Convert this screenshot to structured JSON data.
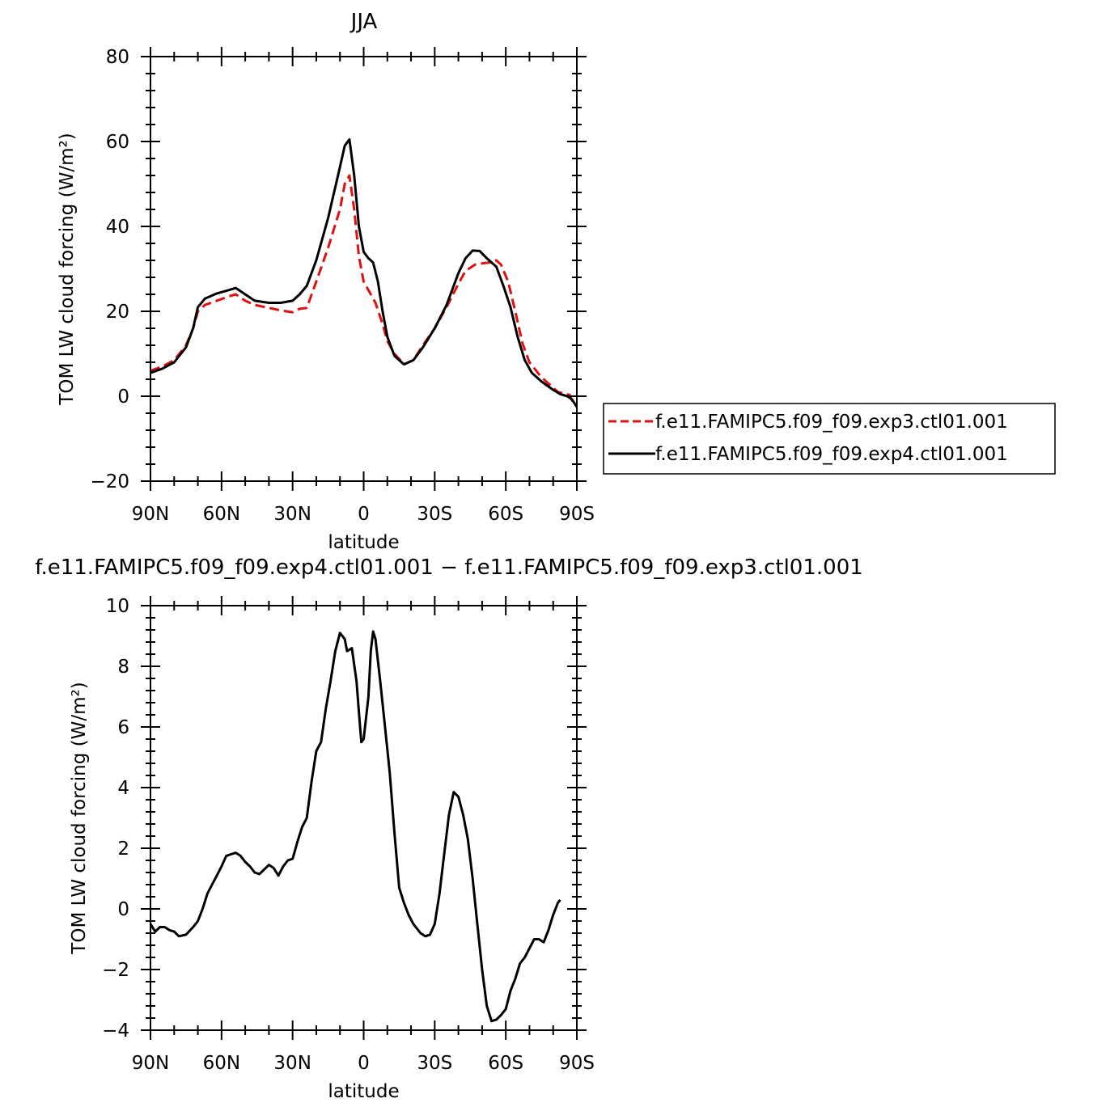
{
  "chart_data": [
    {
      "type": "line",
      "title": "JJA",
      "xlabel": "latitude",
      "ylabel": "TOM LW cloud forcing (W/m²)",
      "xlim": [
        90,
        -90
      ],
      "ylim": [
        -20,
        80
      ],
      "xticks": [
        90,
        60,
        30,
        0,
        -30,
        -60,
        -90
      ],
      "xtick_labels": [
        "90N",
        "60N",
        "30N",
        "0",
        "30S",
        "60S",
        "90S"
      ],
      "yticks": [
        -20,
        0,
        20,
        40,
        60,
        80
      ],
      "ytick_labels": [
        "−20",
        "0",
        "20",
        "40",
        "60",
        "80"
      ],
      "legend": "right",
      "series": [
        {
          "name": "f.e11.FAMIPC5.f09_f09.exp3.ctl01.001",
          "color": "#e01010",
          "dash": "dashed",
          "points": [
            [
              90,
              6
            ],
            [
              85,
              7
            ],
            [
              80,
              8.5
            ],
            [
              75,
              12
            ],
            [
              72,
              16
            ],
            [
              70,
              20
            ],
            [
              67,
              21.5
            ],
            [
              62,
              22.5
            ],
            [
              57,
              23.5
            ],
            [
              54,
              24
            ],
            [
              50,
              22.5
            ],
            [
              46,
              21.5
            ],
            [
              40,
              20.8
            ],
            [
              35,
              20.2
            ],
            [
              30,
              19.8
            ],
            [
              27,
              20.6
            ],
            [
              24,
              20.8
            ],
            [
              20,
              27
            ],
            [
              15,
              35
            ],
            [
              10,
              44
            ],
            [
              8,
              50
            ],
            [
              6,
              52
            ],
            [
              4,
              44
            ],
            [
              2,
              33
            ],
            [
              0,
              27
            ],
            [
              -3,
              24
            ],
            [
              -5,
              22
            ],
            [
              -8,
              17
            ],
            [
              -10,
              13
            ],
            [
              -13,
              10
            ],
            [
              -17,
              7.5
            ],
            [
              -21,
              8.5
            ],
            [
              -25,
              12
            ],
            [
              -30,
              16
            ],
            [
              -35,
              21
            ],
            [
              -40,
              26.5
            ],
            [
              -43,
              29.5
            ],
            [
              -47,
              31
            ],
            [
              -50,
              31.3
            ],
            [
              -53,
              31.5
            ],
            [
              -56,
              32
            ],
            [
              -58,
              31
            ],
            [
              -61,
              27
            ],
            [
              -64,
              20
            ],
            [
              -67,
              12.5
            ],
            [
              -70,
              8
            ],
            [
              -75,
              4.5
            ],
            [
              -80,
              2
            ],
            [
              -82,
              1
            ],
            [
              -85,
              0.6
            ],
            [
              -87,
              0.3
            ],
            [
              -88,
              -1
            ],
            [
              -90,
              -2.5
            ]
          ]
        },
        {
          "name": "f.e11.FAMIPC5.f09_f09.exp4.ctl01.001",
          "color": "#000000",
          "dash": "solid",
          "points": [
            [
              90,
              5.5
            ],
            [
              85,
              6.5
            ],
            [
              80,
              8
            ],
            [
              75,
              11.5
            ],
            [
              72,
              16
            ],
            [
              70,
              21
            ],
            [
              67,
              23
            ],
            [
              62,
              24.2
            ],
            [
              57,
              25
            ],
            [
              54,
              25.5
            ],
            [
              50,
              24
            ],
            [
              46,
              22.5
            ],
            [
              40,
              22
            ],
            [
              35,
              22
            ],
            [
              30,
              22.5
            ],
            [
              27,
              24
            ],
            [
              24,
              26
            ],
            [
              20,
              32
            ],
            [
              15,
              42
            ],
            [
              10,
              54
            ],
            [
              8,
              59
            ],
            [
              6,
              60.5
            ],
            [
              4,
              52
            ],
            [
              2,
              40
            ],
            [
              0,
              34
            ],
            [
              -2,
              32.5
            ],
            [
              -4,
              31.5
            ],
            [
              -6,
              27
            ],
            [
              -8,
              20
            ],
            [
              -10,
              14
            ],
            [
              -13,
              9.5
            ],
            [
              -17,
              7.5
            ],
            [
              -21,
              8.5
            ],
            [
              -25,
              11.5
            ],
            [
              -30,
              16
            ],
            [
              -35,
              21.5
            ],
            [
              -40,
              29
            ],
            [
              -43,
              32.5
            ],
            [
              -46,
              34.3
            ],
            [
              -49,
              34.2
            ],
            [
              -52,
              32.5
            ],
            [
              -56,
              30.5
            ],
            [
              -59,
              26
            ],
            [
              -62,
              21
            ],
            [
              -65,
              14
            ],
            [
              -68,
              8.5
            ],
            [
              -71,
              5.5
            ],
            [
              -75,
              3.5
            ],
            [
              -80,
              1.5
            ],
            [
              -83,
              0.5
            ],
            [
              -86,
              0
            ],
            [
              -88,
              -0.8
            ],
            [
              -90,
              -2.5
            ]
          ]
        }
      ]
    },
    {
      "type": "line",
      "title": "f.e11.FAMIPC5.f09_f09.exp4.ctl01.001 − f.e11.FAMIPC5.f09_f09.exp3.ctl01.001",
      "xlabel": "latitude",
      "ylabel": "TOM LW cloud forcing (W/m²)",
      "xlim": [
        90,
        -90
      ],
      "ylim": [
        -4,
        10
      ],
      "xticks": [
        90,
        60,
        30,
        0,
        -30,
        -60,
        -90
      ],
      "xtick_labels": [
        "90N",
        "60N",
        "30N",
        "0",
        "30S",
        "60S",
        "90S"
      ],
      "yticks": [
        -4,
        -2,
        0,
        2,
        4,
        6,
        8,
        10
      ],
      "ytick_labels": [
        "−4",
        "−2",
        "0",
        "2",
        "4",
        "6",
        "8",
        "10"
      ],
      "series": [
        {
          "color": "#000000",
          "dash": "solid",
          "points": [
            [
              90,
              -0.5
            ],
            [
              88,
              -0.75
            ],
            [
              86,
              -0.6
            ],
            [
              84,
              -0.6
            ],
            [
              82,
              -0.7
            ],
            [
              80,
              -0.75
            ],
            [
              78,
              -0.9
            ],
            [
              75,
              -0.85
            ],
            [
              72,
              -0.6
            ],
            [
              70,
              -0.4
            ],
            [
              68,
              0
            ],
            [
              66,
              0.5
            ],
            [
              64,
              0.8
            ],
            [
              62,
              1.1
            ],
            [
              60,
              1.4
            ],
            [
              58,
              1.75
            ],
            [
              56,
              1.8
            ],
            [
              54,
              1.85
            ],
            [
              52,
              1.75
            ],
            [
              50,
              1.55
            ],
            [
              48,
              1.4
            ],
            [
              46,
              1.2
            ],
            [
              44,
              1.15
            ],
            [
              42,
              1.3
            ],
            [
              40,
              1.45
            ],
            [
              38,
              1.35
            ],
            [
              36,
              1.1
            ],
            [
              34,
              1.4
            ],
            [
              32,
              1.6
            ],
            [
              30,
              1.65
            ],
            [
              28,
              2.2
            ],
            [
              26,
              2.7
            ],
            [
              24,
              3
            ],
            [
              22,
              4.2
            ],
            [
              20,
              5.2
            ],
            [
              18,
              5.5
            ],
            [
              16,
              6.6
            ],
            [
              14,
              7.5
            ],
            [
              12,
              8.5
            ],
            [
              10,
              9.1
            ],
            [
              8,
              8.9
            ],
            [
              7,
              8.5
            ],
            [
              5,
              8.6
            ],
            [
              3,
              7.5
            ],
            [
              2,
              6.5
            ],
            [
              1,
              5.5
            ],
            [
              0,
              5.6
            ],
            [
              -2,
              7
            ],
            [
              -3,
              8.5
            ],
            [
              -4,
              9.15
            ],
            [
              -5,
              8.9
            ],
            [
              -7,
              7.5
            ],
            [
              -9,
              6
            ],
            [
              -11,
              4.5
            ],
            [
              -13,
              2.5
            ],
            [
              -15,
              0.7
            ],
            [
              -17,
              0.2
            ],
            [
              -19,
              -0.2
            ],
            [
              -21,
              -0.5
            ],
            [
              -24,
              -0.8
            ],
            [
              -26,
              -0.9
            ],
            [
              -28,
              -0.85
            ],
            [
              -30,
              -0.5
            ],
            [
              -32,
              0.5
            ],
            [
              -34,
              1.8
            ],
            [
              -36,
              3.1
            ],
            [
              -38,
              3.85
            ],
            [
              -40,
              3.7
            ],
            [
              -42,
              3.1
            ],
            [
              -44,
              2.3
            ],
            [
              -46,
              1
            ],
            [
              -48,
              -0.5
            ],
            [
              -50,
              -2
            ],
            [
              -52,
              -3.2
            ],
            [
              -54,
              -3.7
            ],
            [
              -56,
              -3.65
            ],
            [
              -58,
              -3.5
            ],
            [
              -60,
              -3.3
            ],
            [
              -62,
              -2.7
            ],
            [
              -64,
              -2.3
            ],
            [
              -66,
              -1.8
            ],
            [
              -68,
              -1.6
            ],
            [
              -70,
              -1.3
            ],
            [
              -72,
              -1
            ],
            [
              -74,
              -1
            ],
            [
              -76,
              -1.1
            ],
            [
              -78,
              -0.7
            ],
            [
              -80,
              -0.2
            ],
            [
              -82,
              0.2
            ],
            [
              -83,
              0.3
            ]
          ]
        }
      ]
    }
  ]
}
